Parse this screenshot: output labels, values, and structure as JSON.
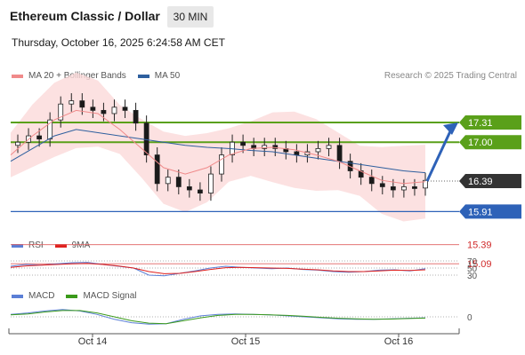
{
  "header": {
    "title": "Ethereum Classic / Dollar",
    "timeframe": "30 MIN",
    "datetime": "Thursday, October 16, 2025 6:24:58 AM CET",
    "credit": "Research © 2025 Trading Central"
  },
  "legend_main": [
    {
      "label": "MA 20 + Bollinger Bands",
      "color": "#f08a8a"
    },
    {
      "label": "MA 50",
      "color": "#2e5f9e"
    }
  ],
  "legend_rsi": [
    {
      "label": "RSI",
      "color": "#5b7fd6"
    },
    {
      "label": "9MA",
      "color": "#e0201d"
    }
  ],
  "legend_macd": [
    {
      "label": "MACD",
      "color": "#5b7fd6"
    },
    {
      "label": "MACD Signal",
      "color": "#3a9a1a"
    }
  ],
  "colors": {
    "up_candle": "#ffffff",
    "down_candle": "#1a1a1a",
    "resistance": "#5aa01a",
    "support": "#2e62b8",
    "target_low": "#e06060",
    "current_price_bg": "#333333",
    "bollinger_fill": "#fbd9d9",
    "arrow": "#2e62b8"
  },
  "chart_data": [
    {
      "type": "candlestick",
      "title": "Ethereum Classic / Dollar",
      "x_ticks": [
        "Oct 14",
        "Oct 15",
        "Oct 16"
      ],
      "ylim": [
        15.0,
        18.0
      ],
      "price_levels": [
        {
          "label": "17.31",
          "value": 17.31,
          "kind": "resistance"
        },
        {
          "label": "17.00",
          "value": 17.0,
          "kind": "resistance"
        },
        {
          "label": "16.39",
          "value": 16.39,
          "kind": "current"
        },
        {
          "label": "15.91",
          "value": 15.91,
          "kind": "support"
        },
        {
          "label": "15.39",
          "value": 15.39,
          "kind": "target"
        },
        {
          "label": "15.09",
          "value": 15.09,
          "kind": "target"
        }
      ],
      "close_approx": [
        17.0,
        17.1,
        17.05,
        17.35,
        17.6,
        17.65,
        17.55,
        17.5,
        17.45,
        17.55,
        17.5,
        17.3,
        16.8,
        16.35,
        16.45,
        16.3,
        16.25,
        16.2,
        16.5,
        16.8,
        17.0,
        16.95,
        16.9,
        16.95,
        16.9,
        16.85,
        16.8,
        16.85,
        16.9,
        16.95,
        16.7,
        16.55,
        16.45,
        16.35,
        16.3,
        16.25,
        16.3,
        16.28,
        16.4
      ],
      "ma20_approx": [
        16.8,
        17.1,
        17.35,
        17.5,
        17.45,
        17.2,
        16.9,
        16.6,
        16.5,
        16.6,
        16.8,
        16.9,
        16.92,
        16.88,
        16.8,
        16.7,
        16.55,
        16.4,
        16.35,
        16.38
      ],
      "ma50_approx": [
        16.7,
        16.9,
        17.1,
        17.2,
        17.15,
        17.1,
        17.05,
        17.0,
        16.95,
        16.92,
        16.9,
        16.87,
        16.85,
        16.8,
        16.75,
        16.7,
        16.65,
        16.6,
        16.55,
        16.52
      ],
      "projection": {
        "from": 16.39,
        "to": 17.31
      }
    },
    {
      "type": "line",
      "title": "RSI",
      "series": [
        {
          "name": "RSI"
        },
        {
          "name": "9MA"
        }
      ],
      "y_ticks": [
        "70",
        "50",
        "30"
      ],
      "ylim": [
        20,
        80
      ],
      "rsi_approx": [
        55,
        60,
        58,
        62,
        65,
        66,
        60,
        55,
        50,
        30,
        28,
        35,
        42,
        50,
        55,
        52,
        50,
        48,
        50,
        46,
        44,
        40,
        38,
        40,
        44,
        45,
        42,
        48
      ],
      "ma_approx": [
        52,
        56,
        58,
        60,
        62,
        63,
        60,
        56,
        50,
        40,
        34,
        35,
        40,
        46,
        51,
        52,
        51,
        50,
        49,
        47,
        45,
        42,
        40,
        40,
        42,
        44,
        43,
        45
      ]
    },
    {
      "type": "line",
      "title": "MACD",
      "series": [
        {
          "name": "MACD"
        },
        {
          "name": "MACD Signal"
        }
      ],
      "y_ticks": [
        "0"
      ],
      "ylim": [
        -0.3,
        0.3
      ],
      "macd_approx": [
        0.05,
        0.08,
        0.12,
        0.15,
        0.12,
        0.05,
        -0.05,
        -0.12,
        -0.15,
        -0.14,
        -0.05,
        0.02,
        0.05,
        0.06,
        0.05,
        0.04,
        0.02,
        0.0,
        -0.02,
        -0.04,
        -0.05,
        -0.05,
        -0.04,
        -0.03,
        -0.02
      ],
      "signal_approx": [
        0.04,
        0.06,
        0.1,
        0.13,
        0.13,
        0.08,
        0.0,
        -0.08,
        -0.13,
        -0.14,
        -0.08,
        -0.02,
        0.03,
        0.05,
        0.05,
        0.04,
        0.03,
        0.01,
        -0.01,
        -0.03,
        -0.04,
        -0.05,
        -0.045,
        -0.035,
        -0.025
      ]
    }
  ]
}
